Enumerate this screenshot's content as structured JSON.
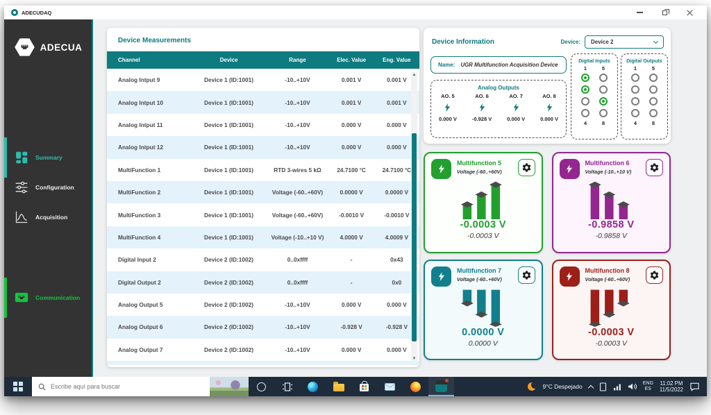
{
  "colors": {
    "teal_primary": "#0E7B80",
    "sidebar_bg": "#333333",
    "sidebar_active_teal": "#2CBCAD",
    "communication_green": "#13C43F",
    "row_alt_blue": "#E4F2FB",
    "led_on_green": "#1CA52C",
    "taskbar_bg": "#1D2B3B"
  },
  "window": {
    "title": "ADECUDAQ"
  },
  "sidebar": {
    "brand": "ADECUA",
    "items": [
      {
        "label": "Summary",
        "icon": "summary-grid-icon",
        "active": true
      },
      {
        "label": "Configuration",
        "icon": "sliders-icon",
        "active": false
      },
      {
        "label": "Acquisition",
        "icon": "waveform-icon",
        "active": false
      },
      {
        "label": "Communication",
        "icon": "ethernet-port-icon",
        "active": false
      }
    ]
  },
  "measurements": {
    "title": "Device Measurements",
    "columns": [
      "Channel",
      "Device",
      "Range",
      "Elec. Value",
      "Eng. Value"
    ],
    "rows": [
      [
        "Analog Intput 9",
        "Device 1 (ID:1001)",
        "-10..+10V",
        "0.001 V",
        "0.001 V"
      ],
      [
        "Analog Intput 10",
        "Device 1 (ID:1001)",
        "-10..+10V",
        "0.001 V",
        "0.001 V"
      ],
      [
        "Analog Intput 11",
        "Device 1 (ID:1001)",
        "-10..+10V",
        "0.000 V",
        "0.000 V"
      ],
      [
        "Analog Intput 12",
        "Device 1 (ID:1001)",
        "-10..+10V",
        "0.000 V",
        "0.000 V"
      ],
      [
        "MultiFunction 1",
        "Device 1 (ID:1001)",
        "RTD 3-wires 5 kΩ",
        "24.7100 °C",
        "24.7100 °C"
      ],
      [
        "MultiFunction 2",
        "Device 1 (ID:1001)",
        "Voltage (-60..+60V)",
        "0.0000 V",
        "0.0000 V"
      ],
      [
        "MultiFunction 3",
        "Device 1 (ID:1001)",
        "Voltage (-60..+60V)",
        "-0.0010 V",
        "-0.0010 V"
      ],
      [
        "MultiFunction 4",
        "Device 1 (ID:1001)",
        "Voltage (-10..+10 V)",
        "4.0000 V",
        "4.0009 V"
      ],
      [
        "Digital Input 2",
        "Device 2 (ID:1002)",
        "0..0xffff",
        "-",
        "0x43"
      ],
      [
        "Digital Output 2",
        "Device 2 (ID:1002)",
        "0..0xffff",
        "-",
        "0x0"
      ],
      [
        "Analog Output 5",
        "Device 2 (ID:1002)",
        "-10..+10V",
        "0.000 V",
        "0.000 V"
      ],
      [
        "Analog Output 6",
        "Device 2 (ID:1002)",
        "-10..+10V",
        "-0.928 V",
        "-0.928 V"
      ],
      [
        "Analog Output 7",
        "Device 2 (ID:1002)",
        "-10..+10V",
        "0.000 V",
        "0.000 V"
      ]
    ]
  },
  "device_info": {
    "title": "Device Information",
    "device_label": "Device:",
    "device_selected": "Device 2",
    "name_label": "Name:",
    "name_value": "UGR Multifunction Acquisition Device",
    "analog_outputs": {
      "title": "Analog Outputs",
      "channels": [
        {
          "label": "AO. 5",
          "value": "0.000 V"
        },
        {
          "label": "AO. 6",
          "value": "-0.928 V"
        },
        {
          "label": "AO. 7",
          "value": "0.000 V"
        },
        {
          "label": "AO. 8",
          "value": "0.000 V"
        }
      ]
    },
    "digital_inputs": {
      "title": "Digital Inputs",
      "top_labels": [
        "1",
        "5"
      ],
      "bottom_labels": [
        "4",
        "8"
      ],
      "states": [
        true,
        true,
        false,
        false,
        false,
        false,
        true,
        false
      ]
    },
    "digital_outputs": {
      "title": "Digital Outputs",
      "top_labels": [
        "1",
        "5"
      ],
      "bottom_labels": [
        "4",
        "8"
      ],
      "states": [
        false,
        false,
        false,
        false,
        false,
        false,
        false,
        false
      ]
    }
  },
  "multifunction_cards": [
    {
      "title": "Multifunction 5",
      "range": "Voltage (-60..+60V)",
      "value": "-0.0003 V",
      "sub_value": "-0.0003 V",
      "accent": "#21A02E",
      "bg": "#FDFFFD"
    },
    {
      "title": "Multifunction 6",
      "range": "Voltage (-10..+10 V)",
      "value": "-0.9858 V",
      "sub_value": "-0.9858 V",
      "accent": "#93278F",
      "bg": "#FDF4FD"
    },
    {
      "title": "Multifunction 7",
      "range": "Voltage (-60..+60V)",
      "value": "0.0000 V",
      "sub_value": "0.0000 V",
      "accent": "#11808C",
      "bg": "#F3FAFB"
    },
    {
      "title": "Multifunction 8",
      "range": "Voltage (-60..+60V)",
      "value": "-0.0003 V",
      "sub_value": "-0.0003 V",
      "accent": "#9C1F1A",
      "bg": "#FCF5F4"
    }
  ],
  "taskbar": {
    "search_placeholder": "Escribe aquí para buscar",
    "pinned_apps": [
      "cortana",
      "task-view",
      "edge",
      "file-explorer",
      "microsoft-store",
      "mail",
      "firefox",
      "adecudaq"
    ],
    "tray": {
      "weather": "9°C Despejado",
      "language_primary": "ENG",
      "language_secondary": "ES",
      "time": "11:02 PM",
      "date": "11/5/2022"
    }
  }
}
